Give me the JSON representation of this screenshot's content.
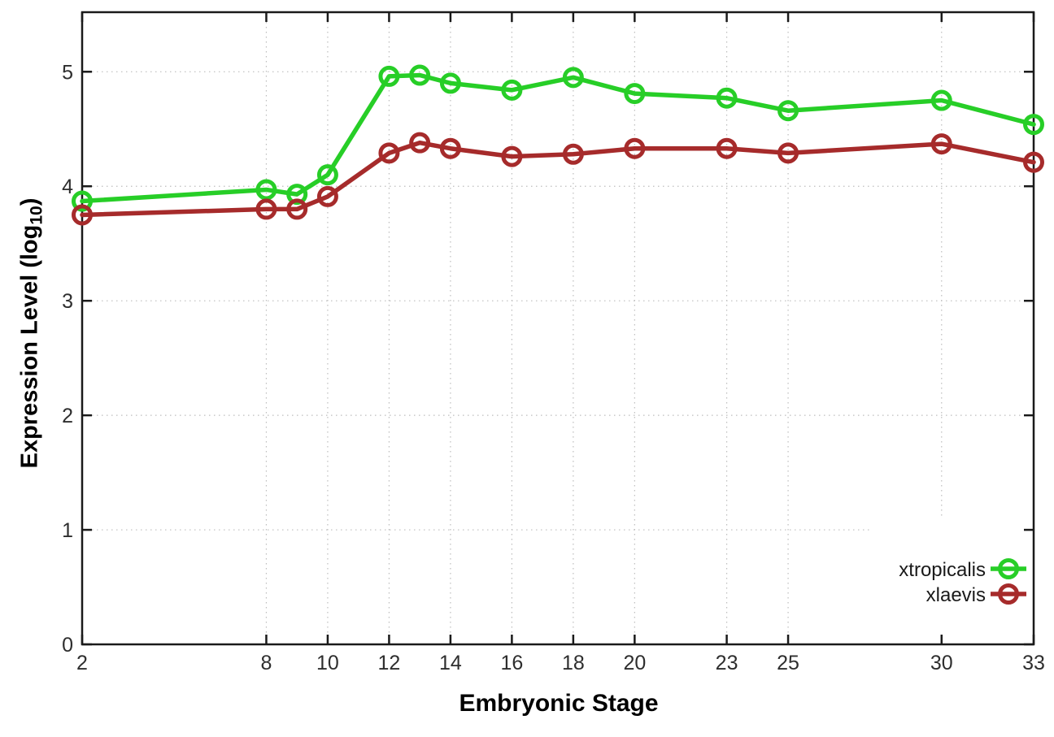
{
  "chart_data": {
    "type": "line",
    "title": "",
    "xlabel": "Embryonic Stage",
    "ylabel": "Expression Level (log10)",
    "ylabel_parts": {
      "prefix": "Expression Level (log",
      "subscript": "10",
      "suffix": ")"
    },
    "x": [
      2,
      8,
      9,
      10,
      12,
      13,
      14,
      16,
      18,
      20,
      23,
      25,
      30,
      33
    ],
    "series": [
      {
        "name": "xtropicalis",
        "color": "#27CE27",
        "values": [
          3.87,
          3.97,
          3.93,
          4.1,
          4.96,
          4.97,
          4.9,
          4.84,
          4.95,
          4.81,
          4.77,
          4.66,
          4.75,
          4.54
        ]
      },
      {
        "name": "xlaevis",
        "color": "#A62B2B",
        "values": [
          3.75,
          3.8,
          3.8,
          3.91,
          4.29,
          4.38,
          4.33,
          4.26,
          4.28,
          4.33,
          4.33,
          4.29,
          4.37,
          4.21
        ]
      }
    ],
    "x_ticks": [
      2,
      8,
      10,
      12,
      14,
      16,
      18,
      20,
      23,
      25,
      30,
      33
    ],
    "y_ticks": [
      0,
      1,
      2,
      3,
      4,
      5
    ],
    "xlim": [
      2,
      33
    ],
    "ylim": [
      0,
      5.52
    ],
    "grid": true,
    "legend_position": "bottom-right-inside",
    "marker": "open-circle"
  },
  "colors": {
    "background": "#ffffff",
    "grid": "#bdbdbd",
    "axis": "#1a1a1a",
    "tick_label": "#2e2e2e",
    "legend_text": "#1a1a1a",
    "legend_box": "#ffffff"
  }
}
